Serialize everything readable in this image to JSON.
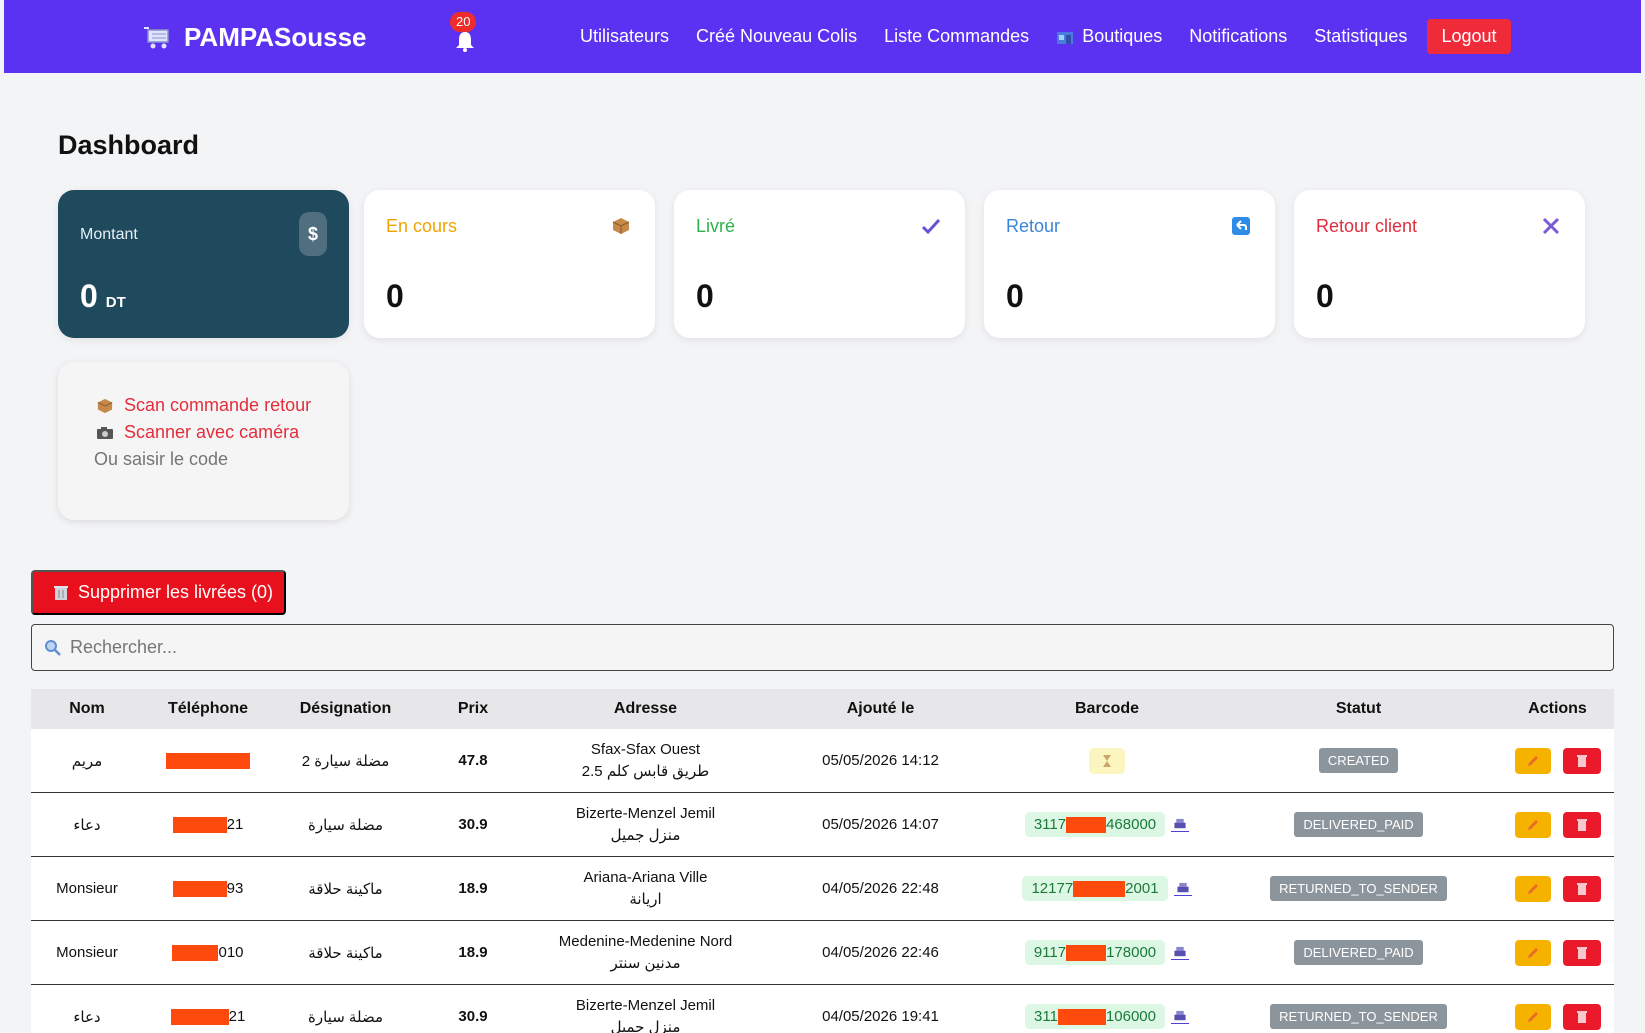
{
  "navbar": {
    "brand": "PAMPASousse",
    "bell_count": "20",
    "links": [
      "Utilisateurs",
      "Créé Nouveau Colis",
      "Liste Commandes",
      "Boutiques",
      "Notifications",
      "Statistiques"
    ],
    "logout": "Logout",
    "color": "#5b32f2"
  },
  "page_title": "Dashboard",
  "cards": {
    "montant": {
      "label": "Montant",
      "value": "0",
      "unit": "DT",
      "icon": "$"
    },
    "en_cours": {
      "label": "En cours",
      "value": "0",
      "color": "#f0a400"
    },
    "livre": {
      "label": "Livré",
      "value": "0",
      "color": "#2bb34a"
    },
    "retour": {
      "label": "Retour",
      "value": "0",
      "color": "#3a86d8"
    },
    "retour_client": {
      "label": "Retour client",
      "value": "0",
      "color": "#e22d3d"
    }
  },
  "scan": {
    "scan_retour": "Scan commande retour",
    "scanner_camera": "Scanner avec caméra",
    "placeholder": "Ou saisir le code"
  },
  "delete_delivered": "Supprimer les livrées (0)",
  "search": {
    "placeholder": "Rechercher..."
  },
  "table": {
    "headers": {
      "nom": "Nom",
      "tel": "Téléphone",
      "des": "Désignation",
      "prix": "Prix",
      "adr": "Adresse",
      "date": "Ajouté le",
      "bar": "Barcode",
      "stat": "Statut",
      "act": "Actions"
    },
    "rows": [
      {
        "nom": "مريم",
        "tel_suffix": "",
        "des": "مضلة سيارة 2",
        "prix": "47.8",
        "adr1": "Sfax-Sfax Ouest",
        "adr2": "طريق قابس كلم 2.5",
        "date": "05/05/2026 14:12",
        "bar_pre": "",
        "bar_post": "",
        "status": "CREATED"
      },
      {
        "nom": "دعاء",
        "tel_suffix": "21",
        "des": "مضلة سيارة",
        "prix": "30.9",
        "adr1": "Bizerte-Menzel Jemil",
        "adr2": "منزل جميل",
        "date": "05/05/2026 14:07",
        "bar_pre": "3117",
        "bar_post": "468000",
        "status": "DELIVERED_PAID"
      },
      {
        "nom": "Monsieur",
        "tel_suffix": "93",
        "des": "ماكينة حلاقة",
        "prix": "18.9",
        "adr1": "Ariana-Ariana Ville",
        "adr2": "اريانة",
        "date": "04/05/2026 22:48",
        "bar_pre": "12177",
        "bar_post": "2001",
        "status": "RETURNED_TO_SENDER"
      },
      {
        "nom": "Monsieur",
        "tel_suffix": "010",
        "des": "ماكينة حلاقة",
        "prix": "18.9",
        "adr1": "Medenine-Medenine Nord",
        "adr2": "مدنين سنتر",
        "date": "04/05/2026 22:46",
        "bar_pre": "9117",
        "bar_post": "178000",
        "status": "DELIVERED_PAID"
      },
      {
        "nom": "دعاء",
        "tel_suffix": "21",
        "des": "مضلة سيارة",
        "prix": "30.9",
        "adr1": "Bizerte-Menzel Jemil",
        "adr2": "منزل جميل",
        "date": "04/05/2026 19:41",
        "bar_pre": "311",
        "bar_post": "106000",
        "status": "RETURNED_TO_SENDER"
      }
    ]
  }
}
